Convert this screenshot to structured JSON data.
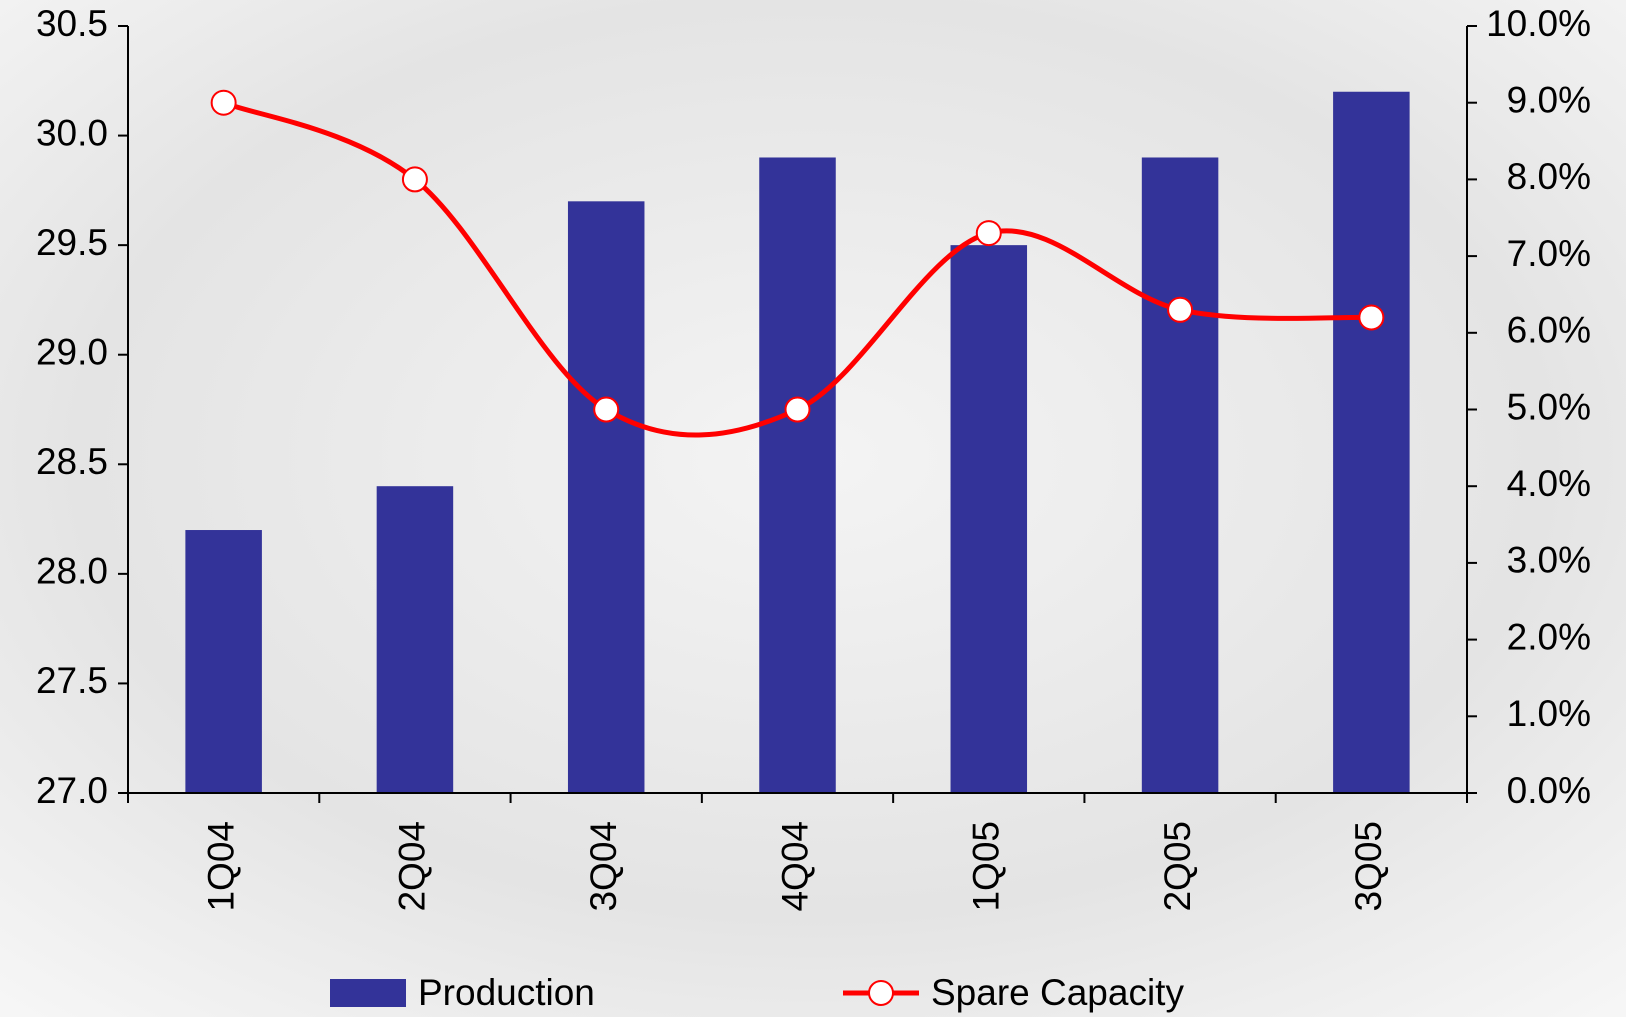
{
  "chart_data": {
    "type": "bar_line",
    "categories": [
      "1Q04",
      "2Q04",
      "3Q04",
      "4Q04",
      "1Q05",
      "2Q05",
      "3Q05"
    ],
    "series": [
      {
        "name": "Production",
        "type": "bar",
        "color": "#333399",
        "values": [
          28.2,
          28.4,
          29.7,
          29.9,
          29.5,
          29.9,
          30.2
        ]
      },
      {
        "name": "Spare Capacity",
        "type": "line",
        "axis": "y2",
        "color": "#ff0000",
        "values": [
          9.0,
          8.0,
          5.0,
          5.0,
          7.3,
          6.3,
          6.2
        ]
      }
    ],
    "ylim": [
      27.0,
      30.5
    ],
    "yticks": [
      {
        "value": 27.0,
        "label": "27.0"
      },
      27.5,
      {
        "value": 28.0,
        "label": "28.0"
      },
      28.5,
      {
        "value": 29.0,
        "label": "29.0"
      },
      29.5,
      {
        "value": 30.0,
        "label": "30.0"
      },
      30.5
    ],
    "y2lim": [
      0,
      10
    ],
    "y2ticks": [
      {
        "value": 0,
        "label": "0.0%"
      },
      {
        "value": 1,
        "label": "1.0%"
      },
      {
        "value": 2,
        "label": "2.0%"
      },
      {
        "value": 3,
        "label": "3.0%"
      },
      {
        "value": 4,
        "label": "4.0%"
      },
      {
        "value": 5,
        "label": "5.0%"
      },
      {
        "value": 6,
        "label": "6.0%"
      },
      {
        "value": 7,
        "label": "7.0%"
      },
      {
        "value": 8,
        "label": "8.0%"
      },
      {
        "value": 9,
        "label": "9.0%"
      },
      {
        "value": 10,
        "label": "10.0%"
      }
    ],
    "grid": false,
    "legend": "bottom"
  }
}
